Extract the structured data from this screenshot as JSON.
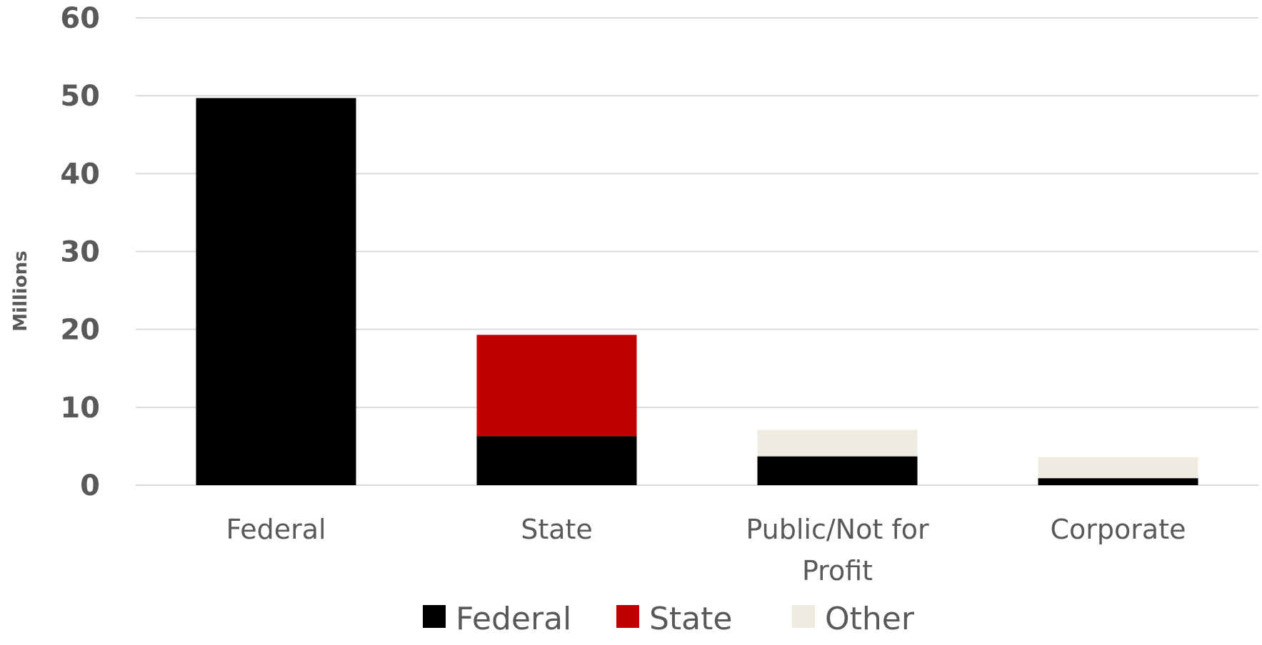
{
  "chart_data": {
    "type": "bar",
    "stacked": true,
    "categories": [
      [
        "Federal"
      ],
      [
        "State"
      ],
      [
        "Public/Not for",
        "Profit"
      ],
      [
        "Corporate"
      ]
    ],
    "series": [
      {
        "name": "Federal",
        "color": "#000000",
        "values": [
          49.7,
          6.3,
          3.7,
          0.9
        ]
      },
      {
        "name": "State",
        "color": "#c00000",
        "values": [
          0,
          13.0,
          0,
          0
        ]
      },
      {
        "name": "Other",
        "color": "#eeebe0",
        "values": [
          0,
          0,
          3.4,
          2.7
        ]
      }
    ],
    "ylabel": "Millions",
    "ylim": [
      0,
      60
    ],
    "yticks": [
      0,
      10,
      20,
      30,
      40,
      50,
      60
    ],
    "grid": true,
    "legend_position": "bottom"
  }
}
